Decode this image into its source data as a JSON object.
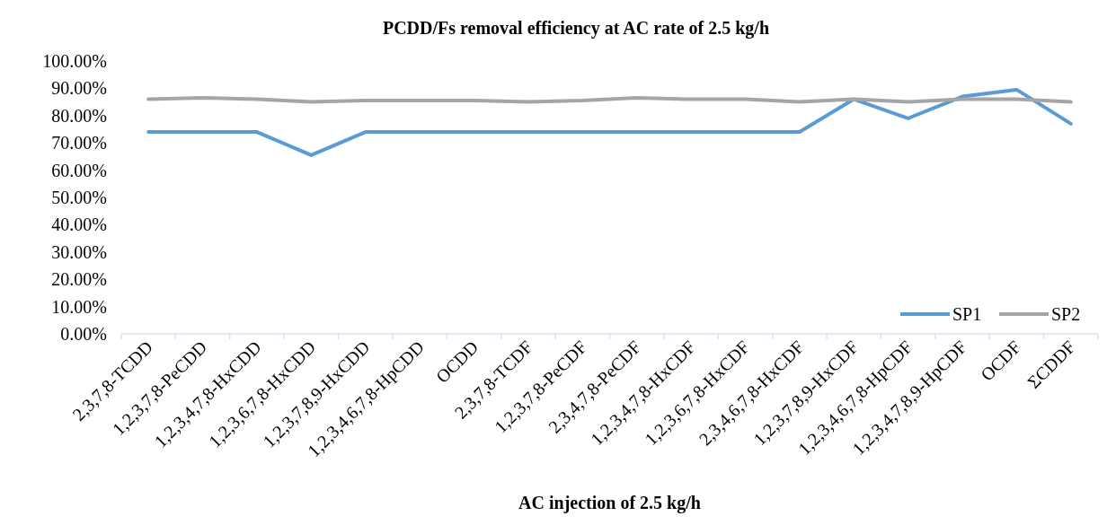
{
  "chart_data": {
    "type": "line",
    "title": "PCDD/Fs removal efficiency at AC rate of 2.5 kg/h",
    "xlabel": "AC injection of 2.5 kg/h",
    "categories": [
      "2,3,7,8-TCDD",
      "1,2,3,7,8-PeCDD",
      "1,2,3,4,7,8-HxCDD",
      "1,2,3,6,7,8-HxCDD",
      "1,2,3,7,8,9-HxCDD",
      "1,2,3,4,6,7,8-HpCDD",
      "OCDD",
      "2,3,7,8-TCDF",
      "1,2,3,7,8-PeCDF",
      "2,3,4,7,8-PeCDF",
      "1,2,3,4,7,8-HxCDF",
      "1,2,3,6,7,8-HxCDF",
      "2,3,4,6,7,8-HxCDF",
      "1,2,3,7,8,9-HxCDF",
      "1,2,3,4,6,7,8-HpCDF",
      "1,2,3,4,7,8,9-HpCDF",
      "OCDF",
      "ΣCDDF"
    ],
    "series": [
      {
        "name": "SP1",
        "color": "#5b9bd5",
        "values": [
          74,
          74,
          74,
          65.5,
          74,
          74,
          74,
          74,
          74,
          74,
          74,
          74,
          74,
          86,
          79,
          87,
          89.5,
          77
        ]
      },
      {
        "name": "SP2",
        "color": "#a5a5a5",
        "values": [
          86,
          86.5,
          86,
          85,
          85.5,
          85.5,
          85.5,
          85,
          85.5,
          86.5,
          86,
          86,
          85,
          86,
          85,
          86,
          86,
          85
        ]
      }
    ],
    "ylim": [
      0,
      100
    ],
    "yticks": [
      {
        "value": 0,
        "label": "0.00%"
      },
      {
        "value": 10,
        "label": "10.00%"
      },
      {
        "value": 20,
        "label": "20.00%"
      },
      {
        "value": 30,
        "label": "30.00%"
      },
      {
        "value": 40,
        "label": "40.00%"
      },
      {
        "value": 50,
        "label": "50.00%"
      },
      {
        "value": 60,
        "label": "60.00%"
      },
      {
        "value": 70,
        "label": "70.00%"
      },
      {
        "value": 80,
        "label": "80.00%"
      },
      {
        "value": 90,
        "label": "90.00%"
      },
      {
        "value": 100,
        "label": "100.00%"
      }
    ],
    "grid": false,
    "legend": "bottom right",
    "marker": "none",
    "line_style": "solid"
  }
}
